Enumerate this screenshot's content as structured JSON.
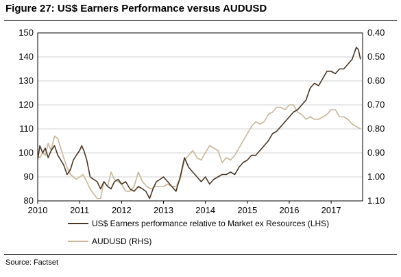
{
  "title": "Figure 27: US$ Earners Performance versus AUDUSD",
  "source": "Source: Factset",
  "chart_data": {
    "type": "line",
    "grid": "horizontal",
    "legend_position": "bottom",
    "x_ticks": [
      "2010",
      "2011",
      "2012",
      "2013",
      "2014",
      "2015",
      "2016",
      "2017"
    ],
    "x_range": [
      2010.0,
      2017.75
    ],
    "y_left_ticks": [
      "150",
      "140",
      "130",
      "120",
      "110",
      "100",
      "90",
      "80"
    ],
    "y_left_range": [
      80,
      150
    ],
    "y_right_ticks": [
      "0.40",
      "0.50",
      "0.60",
      "0.70",
      "0.80",
      "0.90",
      "1.00",
      "1.10"
    ],
    "y_right_range": [
      0.4,
      1.1
    ],
    "y_right_inverted": true,
    "series": [
      {
        "name": "US$ Earners performance relative to Market ex Resources (LHS)",
        "axis": "left",
        "color": "#4a3524",
        "x": [
          2010.0,
          2010.05,
          2010.12,
          2010.18,
          2010.25,
          2010.32,
          2010.4,
          2010.48,
          2010.55,
          2010.62,
          2010.7,
          2010.78,
          2010.85,
          2010.92,
          2011.0,
          2011.05,
          2011.1,
          2011.17,
          2011.25,
          2011.33,
          2011.42,
          2011.5,
          2011.58,
          2011.67,
          2011.75,
          2011.83,
          2011.92,
          2012.0,
          2012.1,
          2012.2,
          2012.3,
          2012.4,
          2012.5,
          2012.58,
          2012.67,
          2012.75,
          2012.83,
          2012.92,
          2013.0,
          2013.1,
          2013.2,
          2013.3,
          2013.4,
          2013.5,
          2013.6,
          2013.7,
          2013.8,
          2013.9,
          2014.0,
          2014.1,
          2014.2,
          2014.3,
          2014.4,
          2014.5,
          2014.6,
          2014.7,
          2014.8,
          2014.9,
          2015.0,
          2015.1,
          2015.2,
          2015.3,
          2015.4,
          2015.5,
          2015.6,
          2015.7,
          2015.8,
          2015.9,
          2016.0,
          2016.1,
          2016.2,
          2016.3,
          2016.4,
          2016.5,
          2016.6,
          2016.7,
          2016.8,
          2016.9,
          2017.0,
          2017.1,
          2017.2,
          2017.3,
          2017.4,
          2017.5,
          2017.6,
          2017.65,
          2017.7
        ],
        "values": [
          97,
          103,
          100,
          102,
          98,
          101,
          103,
          99,
          97,
          95,
          91,
          93,
          97,
          99,
          101,
          103,
          101,
          97,
          90,
          89,
          88,
          85,
          88,
          86,
          85,
          88,
          89,
          87,
          88,
          85,
          84,
          86,
          85,
          84,
          81,
          85,
          88,
          89,
          90,
          88,
          86,
          84,
          90,
          98,
          94,
          92,
          90,
          88,
          90,
          87,
          89,
          90,
          91,
          91,
          92,
          91,
          94,
          96,
          97,
          99,
          99,
          101,
          103,
          105,
          108,
          109,
          111,
          113,
          115,
          117,
          118,
          120,
          122,
          127,
          129,
          128,
          131,
          134,
          134,
          133,
          135,
          135,
          137,
          139,
          144,
          143,
          139
        ]
      },
      {
        "name": "AUDUSD (RHS)",
        "axis": "right",
        "color": "#c9b597",
        "x": [
          2010.0,
          2010.05,
          2010.12,
          2010.18,
          2010.25,
          2010.32,
          2010.4,
          2010.48,
          2010.55,
          2010.62,
          2010.7,
          2010.78,
          2010.85,
          2010.92,
          2011.0,
          2011.08,
          2011.17,
          2011.25,
          2011.33,
          2011.42,
          2011.5,
          2011.58,
          2011.67,
          2011.75,
          2011.83,
          2011.92,
          2012.0,
          2012.1,
          2012.2,
          2012.3,
          2012.4,
          2012.5,
          2012.6,
          2012.7,
          2012.8,
          2012.9,
          2013.0,
          2013.1,
          2013.2,
          2013.3,
          2013.4,
          2013.5,
          2013.6,
          2013.7,
          2013.8,
          2013.9,
          2014.0,
          2014.1,
          2014.2,
          2014.3,
          2014.4,
          2014.5,
          2014.6,
          2014.7,
          2014.8,
          2014.9,
          2015.0,
          2015.1,
          2015.2,
          2015.3,
          2015.4,
          2015.5,
          2015.6,
          2015.7,
          2015.8,
          2015.9,
          2016.0,
          2016.1,
          2016.2,
          2016.3,
          2016.4,
          2016.5,
          2016.6,
          2016.7,
          2016.8,
          2016.9,
          2017.0,
          2017.1,
          2017.2,
          2017.3,
          2017.4,
          2017.5,
          2017.6,
          2017.7
        ],
        "values": [
          0.91,
          0.92,
          0.9,
          0.91,
          0.86,
          0.89,
          0.83,
          0.84,
          0.88,
          0.92,
          0.96,
          0.99,
          1.0,
          1.01,
          1.0,
          0.99,
          1.02,
          1.05,
          1.07,
          1.09,
          1.09,
          1.02,
          1.04,
          0.98,
          1.01,
          1.02,
          1.03,
          1.06,
          1.06,
          1.04,
          0.98,
          1.02,
          1.04,
          1.05,
          1.04,
          1.04,
          1.04,
          1.03,
          1.04,
          1.04,
          1.01,
          0.93,
          0.91,
          0.89,
          0.92,
          0.93,
          0.9,
          0.87,
          0.88,
          0.89,
          0.94,
          0.92,
          0.93,
          0.91,
          0.88,
          0.85,
          0.82,
          0.79,
          0.77,
          0.78,
          0.77,
          0.74,
          0.73,
          0.71,
          0.71,
          0.72,
          0.7,
          0.7,
          0.73,
          0.74,
          0.76,
          0.75,
          0.76,
          0.76,
          0.75,
          0.74,
          0.72,
          0.72,
          0.75,
          0.75,
          0.76,
          0.78,
          0.79,
          0.8
        ]
      }
    ]
  }
}
